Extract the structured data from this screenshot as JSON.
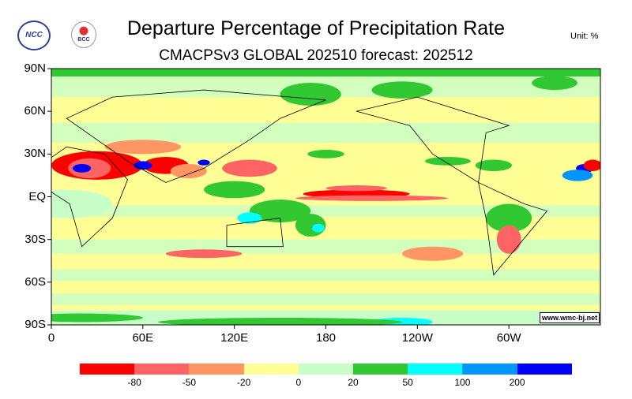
{
  "header": {
    "title": "Departure Percentage of Precipitation Rate",
    "subtitle": "CMACPSv3 GLOBAL 202510 forecast: 202512",
    "unit": "Unit:  %",
    "logos": [
      "NCC",
      "BCC"
    ]
  },
  "watermark": "www.wmc-bj.net",
  "chart_data": {
    "type": "heatmap",
    "title": "Departure Percentage of Precipitation Rate",
    "subtitle": "CMACPSv3 GLOBAL 202510 forecast: 202512",
    "y_ticks": [
      "90N",
      "60N",
      "30N",
      "EQ",
      "30S",
      "60S",
      "90S"
    ],
    "x_ticks": [
      "0",
      "60E",
      "120E",
      "180",
      "120W",
      "60W"
    ],
    "ylim": [
      -90,
      90
    ],
    "xlim": [
      0,
      360
    ],
    "legend": {
      "placement": "bottom",
      "levels": [
        -80,
        -50,
        -20,
        0,
        20,
        50,
        100,
        200
      ],
      "level_labels": [
        "-80",
        "-50",
        "-20",
        "0",
        "20",
        "50",
        "100",
        "200"
      ],
      "colors": [
        "#ff0000",
        "#ff6464",
        "#ff9664",
        "#ffff96",
        "#c8ffc8",
        "#32c832",
        "#00ffff",
        "#0096ff",
        "#0000ff"
      ]
    }
  }
}
